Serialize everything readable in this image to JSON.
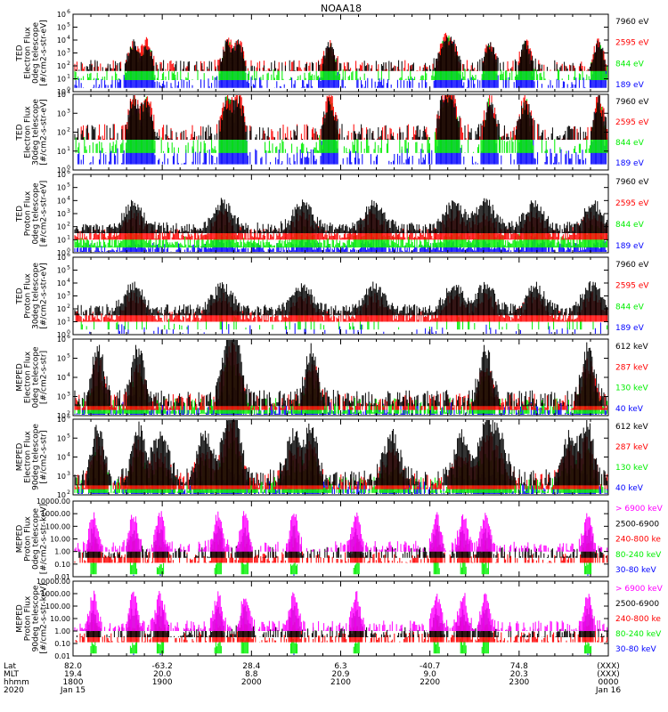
{
  "title": "NOAA18",
  "colors": {
    "black": "#000000",
    "blue": "#0000ff",
    "red": "#ff0000",
    "green": "#00ee00",
    "magenta": "#ff00ff"
  },
  "footer": {
    "row_labels": [
      "Lat",
      "MLT",
      "hhmm",
      "2020"
    ],
    "columns": [
      {
        "values": [
          "82.0",
          "19.4",
          "1800",
          "Jan 15"
        ]
      },
      {
        "values": [
          "-63.2",
          "20.0",
          "1900",
          ""
        ]
      },
      {
        "values": [
          "28.4",
          "8.8",
          "2000",
          ""
        ]
      },
      {
        "values": [
          "6.3",
          "20.9",
          "2100",
          ""
        ]
      },
      {
        "values": [
          "-40.7",
          "9.0",
          "2200",
          ""
        ]
      },
      {
        "values": [
          "74.8",
          "20.3",
          "2300",
          ""
        ]
      },
      {
        "values": [
          "(XXX)",
          "(XXX)",
          "0000",
          "Jan 16"
        ]
      }
    ]
  },
  "chart_data": [
    {
      "type": "scatter",
      "scale": "log",
      "ylim": [
        1,
        1000000
      ],
      "ylabel": [
        "TED",
        "Electron Flux",
        "0deg telescope",
        "[#/cm2-s-str-eV]"
      ],
      "yticks": [
        "10",
        "10",
        "10",
        "10",
        "10",
        "10",
        "10"
      ],
      "yexp": [
        "0",
        "1",
        "2",
        "3",
        "4",
        "5",
        "6"
      ],
      "legend": [
        {
          "label": "7960 eV",
          "color": "#000000"
        },
        {
          "label": "2595 eV",
          "color": "#ff0000"
        },
        {
          "label": "844 eV",
          "color": "#00ee00"
        },
        {
          "label": "189 eV",
          "color": "#0000ff"
        }
      ]
    },
    {
      "type": "scatter",
      "scale": "log",
      "ylim": [
        1,
        100000
      ],
      "ylabel": [
        "TED",
        "Electron Flux",
        "30deg telescope",
        "[#/cm2-s-str-eV]"
      ],
      "yticks": [
        "10",
        "10",
        "10",
        "10",
        "10"
      ],
      "yexp": [
        "0",
        "1",
        "2",
        "3",
        "4"
      ],
      "legend": [
        {
          "label": "7960 eV",
          "color": "#000000"
        },
        {
          "label": "2595 eV",
          "color": "#ff0000"
        },
        {
          "label": "844 eV",
          "color": "#00ee00"
        },
        {
          "label": "189 eV",
          "color": "#0000ff"
        }
      ]
    },
    {
      "type": "scatter",
      "scale": "log",
      "ylim": [
        1,
        1000000
      ],
      "ylabel": [
        "TED",
        "Proton Flux",
        "0deg telescope",
        "[#/cm2-s-str-eV]"
      ],
      "yticks": [
        "10",
        "10",
        "10",
        "10",
        "10",
        "10",
        "10"
      ],
      "yexp": [
        "0",
        "1",
        "2",
        "3",
        "4",
        "5",
        "6"
      ],
      "legend": [
        {
          "label": "7960 eV",
          "color": "#000000"
        },
        {
          "label": "2595 eV",
          "color": "#ff0000"
        },
        {
          "label": "844 eV",
          "color": "#00ee00"
        },
        {
          "label": "189 eV",
          "color": "#0000ff"
        }
      ]
    },
    {
      "type": "scatter",
      "scale": "log",
      "ylim": [
        1,
        1000000
      ],
      "ylabel": [
        "TED",
        "Proton Flux",
        "30deg telescope",
        "[#/cm2-s-str-eV]"
      ],
      "yticks": [
        "10",
        "10",
        "10",
        "10",
        "10",
        "10",
        "10"
      ],
      "yexp": [
        "0",
        "1",
        "2",
        "3",
        "4",
        "5",
        "6"
      ],
      "legend": [
        {
          "label": "7960 eV",
          "color": "#000000"
        },
        {
          "label": "2595 eV",
          "color": "#ff0000"
        },
        {
          "label": "844 eV",
          "color": "#00ee00"
        },
        {
          "label": "189 eV",
          "color": "#0000ff"
        }
      ]
    },
    {
      "type": "scatter",
      "scale": "log",
      "ylim": [
        100,
        1000000
      ],
      "ylabel": [
        "MEPED",
        "Electron Flux",
        "0deg telescope",
        "[#/cm2-s-str]"
      ],
      "yticks": [
        "10",
        "10",
        "10",
        "10",
        "10"
      ],
      "yexp": [
        "2",
        "3",
        "4",
        "5",
        "6"
      ],
      "legend": [
        {
          "label": "612 keV",
          "color": "#000000"
        },
        {
          "label": "287 keV",
          "color": "#ff0000"
        },
        {
          "label": "130 keV",
          "color": "#00ee00"
        },
        {
          "label": "40 keV",
          "color": "#0000ff"
        }
      ]
    },
    {
      "type": "scatter",
      "scale": "log",
      "ylim": [
        100,
        1000000
      ],
      "ylabel": [
        "MEPED",
        "Electron Flux",
        "90deg telescope",
        "[#/cm2-s-str]"
      ],
      "yticks": [
        "10",
        "10",
        "10",
        "10",
        "10"
      ],
      "yexp": [
        "2",
        "3",
        "4",
        "5",
        "6"
      ],
      "legend": [
        {
          "label": "612 keV",
          "color": "#000000"
        },
        {
          "label": "287 keV",
          "color": "#ff0000"
        },
        {
          "label": "130 keV",
          "color": "#00ee00"
        },
        {
          "label": "40 keV",
          "color": "#0000ff"
        }
      ]
    },
    {
      "type": "scatter",
      "scale": "log",
      "ylim": [
        0.01,
        10000
      ],
      "ylabel": [
        "MEPED",
        "Proton Flux",
        "0deg telescope",
        "[#/cm2-s-str-keV]"
      ],
      "yticks": [
        "10000.00",
        "1000.00",
        "100.00",
        "10.00",
        "1.00",
        "0.10",
        "0.01"
      ],
      "yexp": [
        "",
        "",
        "",
        "",
        "",
        "",
        ""
      ],
      "legend": [
        {
          "label": "> 6900 keV",
          "color": "#ff00ff"
        },
        {
          "label": "2500-6900",
          "color": "#000000"
        },
        {
          "label": "240-800 ke",
          "color": "#ff0000"
        },
        {
          "label": "80-240 keV",
          "color": "#00ee00"
        },
        {
          "label": "30-80 keV",
          "color": "#0000ff"
        }
      ]
    },
    {
      "type": "scatter",
      "scale": "log",
      "ylim": [
        0.01,
        10000
      ],
      "ylabel": [
        "MEPED",
        "Proton Flux",
        "90deg telescope",
        "[#/cm2-s-str-keV]"
      ],
      "yticks": [
        "10000.00",
        "1000.00",
        "100.00",
        "10.00",
        "1.00",
        "0.10",
        "0.01"
      ],
      "yexp": [
        "",
        "",
        "",
        "",
        "",
        "",
        ""
      ],
      "legend": [
        {
          "label": "> 6900 keV",
          "color": "#ff00ff"
        },
        {
          "label": "2500-6900",
          "color": "#000000"
        },
        {
          "label": "240-800 ke",
          "color": "#ff0000"
        },
        {
          "label": "80-240 keV",
          "color": "#00ee00"
        },
        {
          "label": "30-80 keV",
          "color": "#0000ff"
        }
      ]
    }
  ]
}
